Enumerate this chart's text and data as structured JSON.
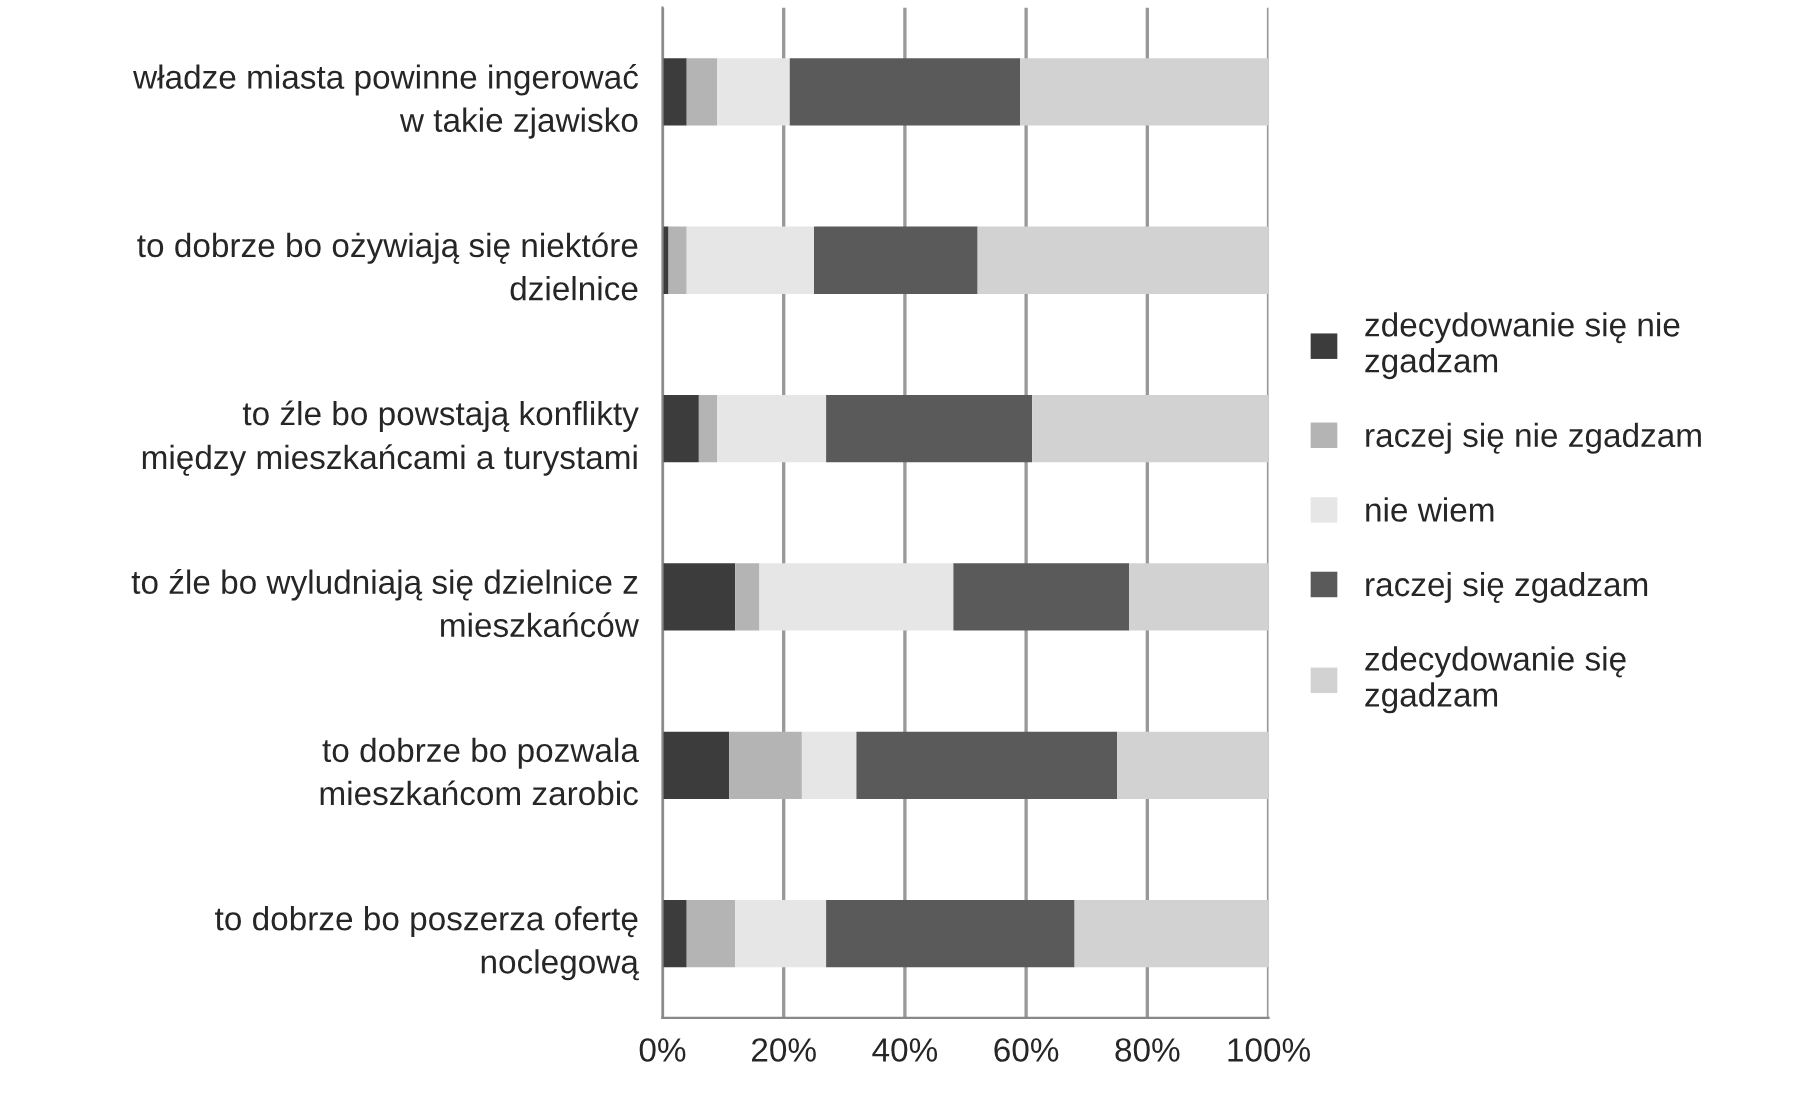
{
  "chart_data": {
    "type": "bar",
    "orientation": "horizontal",
    "stacked": true,
    "categories": [
      "władze miasta powinne ingerować\nw takie zjawisko",
      "to dobrze bo ożywiają się niektóre\ndzielnice",
      "to źle bo powstają konflikty\nmiędzy mieszkańcami a turystami",
      "to źle bo wyludniają się dzielnice z\nmieszkańców",
      "to dobrze bo pozwala\nmieszkańcom zarobic",
      "to dobrze bo poszerza ofertę\nnoclegową"
    ],
    "series": [
      {
        "name": "zdecydowanie się nie\nzgadzam",
        "color": "#3c3c3c",
        "values": [
          4,
          1,
          6,
          12,
          11,
          4
        ]
      },
      {
        "name": "raczej się nie zgadzam",
        "color": "#b4b4b4",
        "values": [
          5,
          3,
          3,
          4,
          12,
          8
        ]
      },
      {
        "name": "nie wiem",
        "color": "#e6e6e6",
        "values": [
          12,
          21,
          18,
          32,
          9,
          15
        ]
      },
      {
        "name": "raczej się zgadzam",
        "color": "#5a5a5a",
        "values": [
          38,
          27,
          34,
          29,
          43,
          41
        ]
      },
      {
        "name": "zdecydowanie się\nzgadzam",
        "color": "#d2d2d2",
        "values": [
          41,
          48,
          39,
          23,
          25,
          32
        ]
      }
    ],
    "xlim": [
      0,
      100
    ],
    "xticks": [
      {
        "value": 0,
        "label": "0%"
      },
      {
        "value": 20,
        "label": "20%"
      },
      {
        "value": 40,
        "label": "40%"
      },
      {
        "value": 60,
        "label": "60%"
      },
      {
        "value": 80,
        "label": "80%"
      },
      {
        "value": 100,
        "label": "100%"
      }
    ],
    "grid": "x",
    "legend": "right"
  }
}
